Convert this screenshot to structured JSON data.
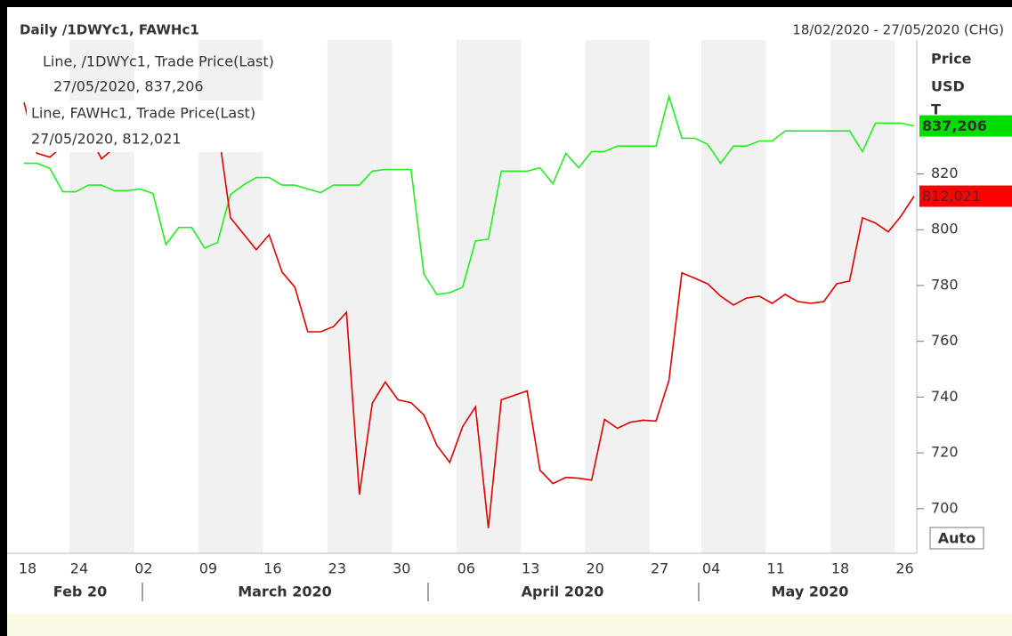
{
  "chart_data": {
    "type": "line",
    "title": "Daily /1DWYc1, FAWHc1",
    "subtitle": "18/02/2020 - 27/05/2020 (CHG)",
    "y_axis_label": "Price",
    "y_axis_unit": "USD",
    "y_axis_extra": "T",
    "button": "Auto",
    "months": [
      "Feb 20",
      "March 2020",
      "April 2020",
      "May 2020"
    ],
    "categories": [
      "18",
      null,
      null,
      null,
      "24",
      null,
      null,
      null,
      null,
      "02",
      null,
      null,
      null,
      null,
      "09",
      null,
      null,
      null,
      null,
      "16",
      null,
      null,
      null,
      null,
      "23",
      null,
      null,
      null,
      null,
      "30",
      null,
      null,
      null,
      null,
      "06",
      null,
      null,
      null,
      null,
      "13",
      null,
      null,
      null,
      null,
      "20",
      null,
      null,
      null,
      null,
      "27",
      null,
      null,
      null,
      "04",
      null,
      null,
      null,
      null,
      "11",
      null,
      null,
      null,
      null,
      "18",
      null,
      null,
      null,
      null,
      "26",
      null
    ],
    "series": [
      {
        "name": "Line, /1DWYc1, Trade Price(Last)",
        "detail": "27/05/2020, 837,206",
        "last_label": "837,206",
        "color": "#22ee22",
        "box_color": "#00dd00",
        "values": [
          823.8,
          823.8,
          822,
          813.6,
          813.6,
          816,
          816,
          814,
          814,
          814.6,
          813,
          794.7,
          800.8,
          800.8,
          793.4,
          795.4,
          812.6,
          816,
          818.7,
          818.7,
          816,
          816,
          814.6,
          813.3,
          816,
          816,
          816,
          821,
          821.6,
          821.6,
          821.6,
          784,
          776.8,
          777.4,
          779.4,
          796,
          796.6,
          821,
          821,
          821,
          822.2,
          816.5,
          827.4,
          822.2,
          828,
          828,
          830,
          830,
          830,
          830,
          847.8,
          832.8,
          832.8,
          830.6,
          823.8,
          830,
          830,
          831.8,
          831.8,
          835.4,
          835.4,
          835.4,
          835.4,
          835.4,
          835.4,
          828,
          838.2,
          838.2,
          838.2,
          837.206
        ]
      },
      {
        "name": "Line, FAWHc1, Trade Price(Last)",
        "detail": "27/05/2020, 812,021",
        "last_label": "812,021",
        "color": "#dd0000",
        "box_color": "#ff0000",
        "values": [
          845.6,
          827.4,
          826,
          830,
          834.4,
          834.4,
          825.4,
          829.3,
          834,
          837.6,
          839,
          840.8,
          840.8,
          840.8,
          840.8,
          837.6,
          804.3,
          798.6,
          792.8,
          798.2,
          784.8,
          779.4,
          763.4,
          763.4,
          765.3,
          770.4,
          705.1,
          737.8,
          745.4,
          739,
          738,
          733.6,
          722.7,
          716.6,
          729.4,
          736.5,
          693,
          739,
          740.6,
          742.2,
          713.8,
          709,
          711.2,
          710.9,
          710.2,
          732,
          728.8,
          731,
          731.7,
          731.4,
          746,
          784.5,
          782.6,
          780.6,
          776.2,
          773,
          775.5,
          776.2,
          773.6,
          776.8,
          774.2,
          773.6,
          774.2,
          780.6,
          781.6,
          804.3,
          802.4,
          799.2,
          805,
          812.021
        ]
      }
    ],
    "ylim": [
      684,
      868
    ],
    "yticks": [
      700,
      720,
      740,
      760,
      780,
      800,
      820
    ],
    "bands": true
  }
}
